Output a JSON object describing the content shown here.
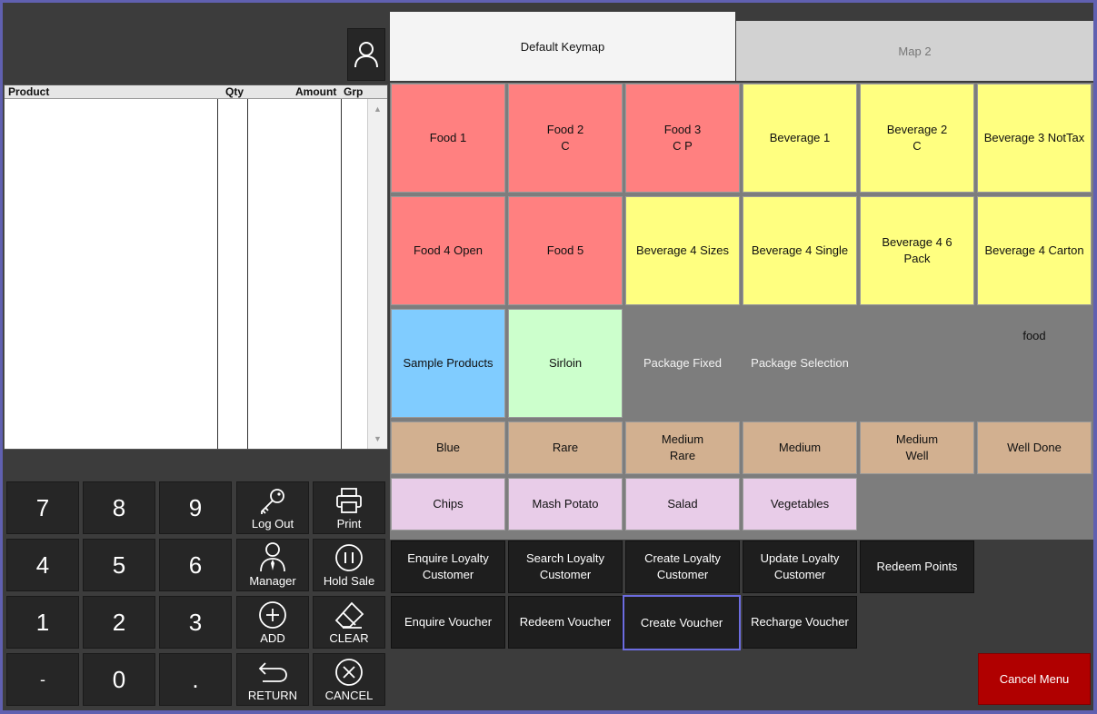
{
  "order_grid": {
    "headers": {
      "product": "Product",
      "qty": "Qty",
      "amount": "Amount",
      "grp": "Grp"
    }
  },
  "keypad": {
    "digits": [
      "7",
      "8",
      "9",
      "4",
      "5",
      "6",
      "1",
      "2",
      "3",
      "-",
      "0",
      "."
    ],
    "functions": {
      "logout": "Log Out",
      "print": "Print",
      "manager": "Manager",
      "hold_sale": "Hold Sale",
      "add": "ADD",
      "clear": "CLEAR",
      "return": "RETURN",
      "cancel": "CANCEL"
    }
  },
  "tabs": {
    "default_keymap": "Default Keymap",
    "map2": "Map 2"
  },
  "product_keys": {
    "food1": "Food 1",
    "food2": "Food 2\nC",
    "food3": "Food 3\nC P",
    "beverage1": "Beverage 1",
    "beverage2": "Beverage 2\nC",
    "beverage3": "Beverage 3 NotTax",
    "food4": "Food 4 Open",
    "food5": "Food 5",
    "beverage4_sizes": "Beverage 4 Sizes",
    "beverage4_single": "Beverage 4 Single",
    "beverage4_6pack": "Beverage 4 6\nPack",
    "beverage4_carton": "Beverage 4 Carton",
    "sample_products": "Sample Products",
    "sirloin": "Sirloin",
    "package_fixed": "Package Fixed",
    "package_selection": "Package Selection",
    "food": "food",
    "blue": "Blue",
    "rare": "Rare",
    "medium_rare": "Medium\nRare",
    "medium": "Medium",
    "medium_well": "Medium\nWell",
    "well_done": "Well Done",
    "chips": "Chips",
    "mash_potato": "Mash Potato",
    "salad": "Salad",
    "vegetables": "Vegetables"
  },
  "loyalty_keys": {
    "enquire_customer": "Enquire Loyalty\nCustomer",
    "search_customer": "Search Loyalty\nCustomer",
    "create_customer": "Create Loyalty\nCustomer",
    "update_customer": "Update Loyalty\nCustomer",
    "redeem_points": "Redeem Points",
    "enquire_voucher": "Enquire Voucher",
    "redeem_voucher": "Redeem Voucher",
    "create_voucher": "Create Voucher",
    "recharge_voucher": "Recharge Voucher"
  },
  "cancel_menu": "Cancel Menu",
  "colors": {
    "food": "#ff8080",
    "beverage": "#ffff80",
    "sample": "#80ccff",
    "sirloin": "#ccffcc",
    "doneness": "#d2b090",
    "sides": "#e8cce8",
    "cancel_menu": "#b00000",
    "selection_border": "#6c6ce0"
  },
  "icons": {
    "user": "user-icon",
    "logout": "key-icon",
    "print": "printer-icon",
    "manager": "manager-icon",
    "hold": "pause-icon",
    "add": "plus-circle-icon",
    "clear": "eraser-icon",
    "return": "return-arrow-icon",
    "cancel": "x-circle-icon",
    "scroll_up": "scroll-up-arrow-icon",
    "scroll_down": "scroll-down-arrow-icon"
  }
}
